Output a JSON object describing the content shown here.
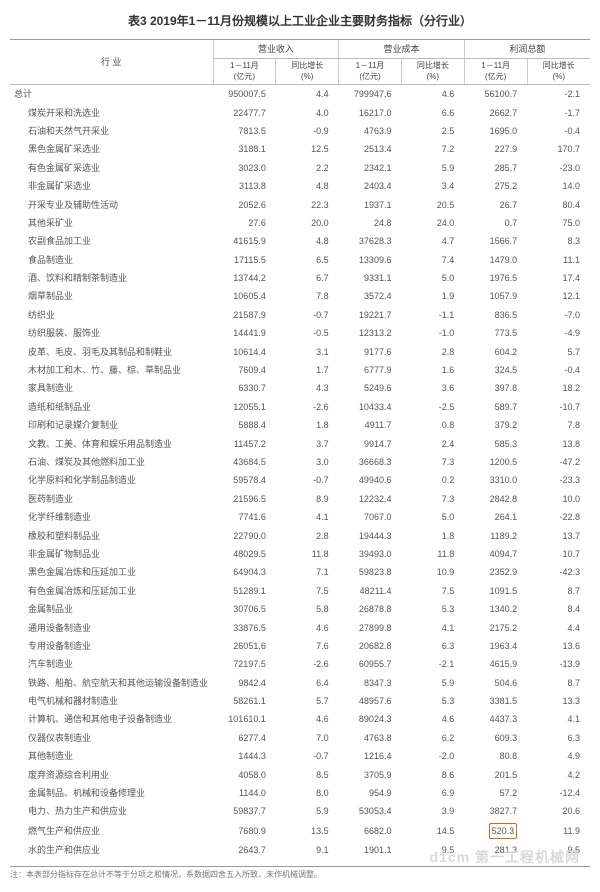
{
  "title": "表3  2019年1－11月份规模以上工业企业主要财务指标（分行业）",
  "header": {
    "industry": "行  业",
    "groups": [
      "营业收入",
      "营业成本",
      "利润总额"
    ],
    "sub1": "1－11月",
    "sub1_unit": "(亿元)",
    "sub2": "同比增长",
    "sub2_unit": "(%)"
  },
  "total_label": "总计",
  "total": [
    "950007.5",
    "4.4",
    "799947.6",
    "4.6",
    "56100.7",
    "-2.1"
  ],
  "rows": [
    {
      "n": "煤炭开采和洗选业",
      "v": [
        "22477.7",
        "4.0",
        "16217.0",
        "6.6",
        "2662.7",
        "-1.7"
      ]
    },
    {
      "n": "石油和天然气开采业",
      "v": [
        "7813.5",
        "-0.9",
        "4763.9",
        "2.5",
        "1695.0",
        "-0.4"
      ]
    },
    {
      "n": "黑色金属矿采选业",
      "v": [
        "3188.1",
        "12.5",
        "2513.4",
        "7.2",
        "227.9",
        "170.7"
      ]
    },
    {
      "n": "有色金属矿采选业",
      "v": [
        "3023.0",
        "2.2",
        "2342.1",
        "5.9",
        "285.7",
        "-23.0"
      ]
    },
    {
      "n": "非金属矿采选业",
      "v": [
        "3113.8",
        "4.8",
        "2403.4",
        "3.4",
        "275.2",
        "14.0"
      ]
    },
    {
      "n": "开采专业及辅助性活动",
      "v": [
        "2052.6",
        "22.3",
        "1937.1",
        "20.5",
        "26.7",
        "80.4"
      ]
    },
    {
      "n": "其他采矿业",
      "v": [
        "27.6",
        "20.0",
        "24.8",
        "24.0",
        "0.7",
        "75.0"
      ]
    },
    {
      "n": "农副食品加工业",
      "v": [
        "41615.9",
        "4.8",
        "37628.3",
        "4.7",
        "1566.7",
        "8.3"
      ]
    },
    {
      "n": "食品制造业",
      "v": [
        "17115.5",
        "6.5",
        "13309.6",
        "7.4",
        "1479.0",
        "11.1"
      ]
    },
    {
      "n": "酒、饮料和精制茶制造业",
      "v": [
        "13744.2",
        "6.7",
        "9331.1",
        "5.0",
        "1976.5",
        "17.4"
      ]
    },
    {
      "n": "烟草制品业",
      "v": [
        "10605.4",
        "7.8",
        "3572.4",
        "1.9",
        "1057.9",
        "12.1"
      ]
    },
    {
      "n": "纺织业",
      "v": [
        "21587.9",
        "-0.7",
        "19221.7",
        "-1.1",
        "836.5",
        "-7.0"
      ]
    },
    {
      "n": "纺织服装、服饰业",
      "v": [
        "14441.9",
        "-0.5",
        "12313.2",
        "-1.0",
        "773.5",
        "-4.9"
      ]
    },
    {
      "n": "皮革、毛皮、羽毛及其制品和制鞋业",
      "v": [
        "10614.4",
        "3.1",
        "9177.6",
        "2.8",
        "604.2",
        "5.7"
      ]
    },
    {
      "n": "木材加工和木、竹、藤、棕、草制品业",
      "v": [
        "7609.4",
        "1.7",
        "6777.9",
        "1.6",
        "324.5",
        "-0.4"
      ]
    },
    {
      "n": "家具制造业",
      "v": [
        "6330.7",
        "4.3",
        "5249.6",
        "3.6",
        "397.8",
        "18.2"
      ]
    },
    {
      "n": "造纸和纸制品业",
      "v": [
        "12055.1",
        "-2.6",
        "10433.4",
        "-2.5",
        "589.7",
        "-10.7"
      ]
    },
    {
      "n": "印刷和记录媒介复制业",
      "v": [
        "5888.4",
        "1.8",
        "4911.7",
        "0.8",
        "379.2",
        "7.8"
      ]
    },
    {
      "n": "文教、工美、体育和娱乐用品制造业",
      "v": [
        "11457.2",
        "3.7",
        "9914.7",
        "2.4",
        "585.3",
        "13.8"
      ]
    },
    {
      "n": "石油、煤炭及其他燃料加工业",
      "v": [
        "43684.5",
        "3.0",
        "36668.3",
        "7.3",
        "1200.5",
        "-47.2"
      ]
    },
    {
      "n": "化学原料和化学制品制造业",
      "v": [
        "59578.4",
        "-0.7",
        "49940.6",
        "0.2",
        "3310.0",
        "-23.3"
      ]
    },
    {
      "n": "医药制造业",
      "v": [
        "21596.5",
        "8.9",
        "12232.4",
        "7.3",
        "2842.8",
        "10.0"
      ]
    },
    {
      "n": "化学纤维制造业",
      "v": [
        "7741.6",
        "4.1",
        "7067.0",
        "5.0",
        "264.1",
        "-22.8"
      ]
    },
    {
      "n": "橡胶和塑料制品业",
      "v": [
        "22790.0",
        "2.8",
        "19444.3",
        "1.8",
        "1189.2",
        "13.7"
      ]
    },
    {
      "n": "非金属矿物制品业",
      "v": [
        "48029.5",
        "11.8",
        "39493.0",
        "11.8",
        "4094.7",
        "10.7"
      ]
    },
    {
      "n": "黑色金属冶炼和压延加工业",
      "v": [
        "64904.3",
        "7.1",
        "59823.8",
        "10.9",
        "2352.9",
        "-42.3"
      ]
    },
    {
      "n": "有色金属冶炼和压延加工业",
      "v": [
        "51289.1",
        "7.5",
        "48211.4",
        "7.5",
        "1091.5",
        "8.7"
      ]
    },
    {
      "n": "金属制品业",
      "v": [
        "30706.5",
        "5.8",
        "26878.8",
        "5.3",
        "1340.2",
        "8.4"
      ]
    },
    {
      "n": "通用设备制造业",
      "v": [
        "33876.5",
        "4.6",
        "27899.8",
        "4.1",
        "2175.2",
        "4.4"
      ]
    },
    {
      "n": "专用设备制造业",
      "v": [
        "26051.6",
        "7.6",
        "20682.8",
        "6.3",
        "1963.4",
        "13.6"
      ]
    },
    {
      "n": "汽车制造业",
      "v": [
        "72197.5",
        "-2.6",
        "60955.7",
        "-2.1",
        "4615.9",
        "-13.9"
      ]
    },
    {
      "n": "铁路、船舶、航空航天和其他运输设备制造业",
      "v": [
        "9842.4",
        "6.4",
        "8347.3",
        "5.9",
        "504.6",
        "8.7"
      ]
    },
    {
      "n": "电气机械和器材制造业",
      "v": [
        "58261.1",
        "5.7",
        "48957.6",
        "5.3",
        "3381.5",
        "13.3"
      ]
    },
    {
      "n": "计算机、通信和其他电子设备制造业",
      "v": [
        "101610.1",
        "4.6",
        "89024.3",
        "4.6",
        "4437.3",
        "4.1"
      ]
    },
    {
      "n": "仪器仪表制造业",
      "v": [
        "6277.4",
        "7.0",
        "4763.8",
        "6.2",
        "609.3",
        "6.3"
      ]
    },
    {
      "n": "其他制造业",
      "v": [
        "1444.3",
        "-0.7",
        "1216.4",
        "-2.0",
        "80.8",
        "4.9"
      ]
    },
    {
      "n": "废弃资源综合利用业",
      "v": [
        "4058.0",
        "8.5",
        "3705.9",
        "8.6",
        "201.5",
        "4.2"
      ]
    },
    {
      "n": "金属制品、机械和设备修理业",
      "v": [
        "1144.0",
        "8.0",
        "954.9",
        "6.9",
        "57.2",
        "-12.4"
      ]
    },
    {
      "n": "电力、热力生产和供应业",
      "v": [
        "59837.7",
        "5.9",
        "53053.4",
        "3.9",
        "3827.7",
        "20.6"
      ]
    },
    {
      "n": "燃气生产和供应业",
      "v": [
        "7680.9",
        "13.5",
        "6682.0",
        "14.5",
        "520.3",
        "11.9",
        "hl"
      ]
    },
    {
      "n": "水的生产和供应业",
      "v": [
        "2643.7",
        "9.1",
        "1901.1",
        "9.5",
        "281.3",
        "9.5"
      ]
    }
  ],
  "footnote": "注：本表部分指标存在总计不等于分项之和情况，系数据四舍五入所致，未作机械调整。",
  "watermark": "d1cm 第一工程机械网"
}
